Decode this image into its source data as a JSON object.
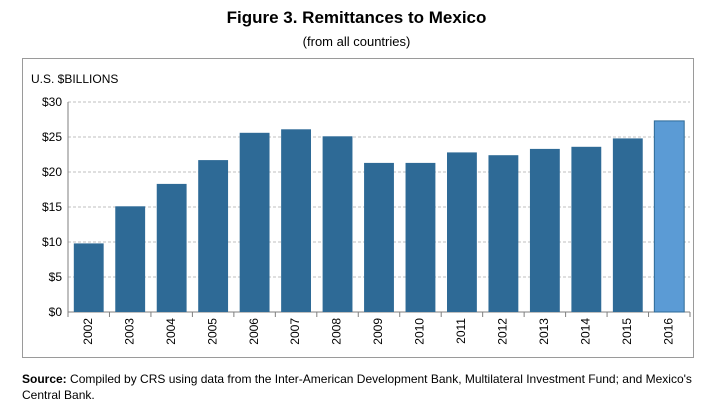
{
  "title": "Figure 3. Remittances to Mexico",
  "subtitle": "(from all countries)",
  "source": {
    "label": "Source:",
    "text": " Compiled by CRS using data from the Inter-American Development Bank, Multilateral Investment Fund; and Mexico's Central Bank."
  },
  "chart_data": {
    "type": "bar",
    "title": "Figure 3. Remittances to Mexico",
    "subtitle": "(from all countries)",
    "ylabel": "U.S. $BILLIONS",
    "xlabel": "",
    "categories": [
      "2002",
      "2003",
      "2004",
      "2005",
      "2006",
      "2007",
      "2008",
      "2009",
      "2010",
      "2011",
      "2012",
      "2013",
      "2014",
      "2015",
      "2016"
    ],
    "values": [
      9.8,
      15.1,
      18.3,
      21.7,
      25.6,
      26.1,
      25.1,
      21.3,
      21.3,
      22.8,
      22.4,
      23.3,
      23.6,
      24.8,
      27.3
    ],
    "ylim": [
      0,
      30
    ],
    "yticks": [
      0,
      5,
      10,
      15,
      20,
      25,
      30
    ],
    "ytick_labels": [
      "$0",
      "$5",
      "$10",
      "$15",
      "$20",
      "$25",
      "$30"
    ],
    "grid": true,
    "legend": "none",
    "colors": {
      "bar": "#2e6a96",
      "highlight": "#5b9bd5",
      "highlight_border": "#2e6a96",
      "grid": "#bfbfbf"
    },
    "highlight_index": 14
  }
}
